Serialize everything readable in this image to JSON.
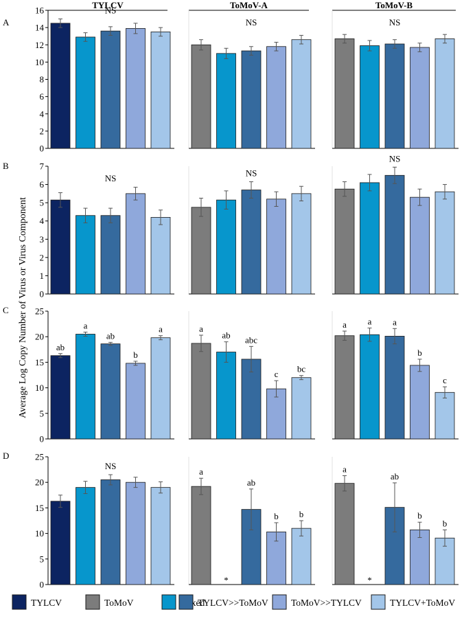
{
  "colors": {
    "TYLCV": "#0c2461",
    "ToMoV": "#7c7c7c",
    "Mixed": "#0796cc",
    "TYLCV>>ToMoV": "#356a9e",
    "ToMoV>>TYLCV": "#8fa8db",
    "TYLCV+ToMoV": "#a3c6e9"
  },
  "column_titles": [
    "TYLCV",
    "ToMoV-A",
    "ToMoV-B"
  ],
  "ylabel": "Average Log Copy Number of Virus or Virus Component",
  "legend": [
    {
      "label": "TYLCV",
      "key": "TYLCV"
    },
    {
      "label": "ToMoV",
      "key": "ToMoV"
    },
    {
      "label": "Mixed",
      "key": "Mixed"
    },
    {
      "label": "TYLCV>>ToMoV",
      "key": "TYLCV>>ToMoV"
    },
    {
      "label": "ToMoV>>TYLCV",
      "key": "ToMoV>>TYLCV"
    },
    {
      "label": "TYLCV+ToMoV",
      "key": "TYLCV+ToMoV"
    }
  ],
  "chart_data": [
    {
      "type": "bar",
      "row_label": "A",
      "yticks": [
        0,
        2,
        4,
        6,
        8,
        10,
        12,
        14,
        16
      ],
      "ylim": [
        0,
        16
      ],
      "panels": [
        {
          "title": "TYLCV",
          "note": "NS",
          "series": [
            "TYLCV",
            "Mixed",
            "TYLCV>>ToMoV",
            "ToMoV>>TYLCV",
            "TYLCV+ToMoV"
          ],
          "values": [
            14.5,
            12.9,
            13.6,
            13.9,
            13.5
          ],
          "errors": [
            0.5,
            0.5,
            0.5,
            0.6,
            0.5
          ],
          "letters": [
            "",
            "",
            "",
            "",
            ""
          ]
        },
        {
          "title": "ToMoV-A",
          "note": "NS",
          "series": [
            "ToMoV",
            "Mixed",
            "TYLCV>>ToMoV",
            "ToMoV>>TYLCV",
            "TYLCV+ToMoV"
          ],
          "values": [
            12.0,
            11.0,
            11.3,
            11.8,
            12.6
          ],
          "errors": [
            0.6,
            0.6,
            0.5,
            0.5,
            0.5
          ],
          "letters": [
            "",
            "",
            "",
            "",
            ""
          ]
        },
        {
          "title": "ToMoV-B",
          "note": "NS",
          "series": [
            "ToMoV",
            "Mixed",
            "TYLCV>>ToMoV",
            "ToMoV>>TYLCV",
            "TYLCV+ToMoV"
          ],
          "values": [
            12.7,
            11.9,
            12.1,
            11.7,
            12.7
          ],
          "errors": [
            0.5,
            0.6,
            0.5,
            0.5,
            0.5
          ],
          "letters": [
            "",
            "",
            "",
            "",
            ""
          ]
        }
      ]
    },
    {
      "type": "bar",
      "row_label": "B",
      "yticks": [
        0,
        1,
        2,
        3,
        4,
        5,
        6,
        7
      ],
      "ylim": [
        0,
        7
      ],
      "panels": [
        {
          "title": "TYLCV",
          "note": "NS",
          "series": [
            "TYLCV",
            "Mixed",
            "TYLCV>>ToMoV",
            "ToMoV>>TYLCV",
            "TYLCV+ToMoV"
          ],
          "values": [
            5.15,
            4.3,
            4.3,
            5.5,
            4.2
          ],
          "errors": [
            0.4,
            0.4,
            0.4,
            0.35,
            0.4
          ],
          "letters": [
            "",
            "",
            "",
            "",
            ""
          ]
        },
        {
          "title": "ToMoV-A",
          "note": "NS",
          "series": [
            "ToMoV",
            "Mixed",
            "TYLCV>>ToMoV",
            "ToMoV>>TYLCV",
            "TYLCV+ToMoV"
          ],
          "values": [
            4.75,
            5.15,
            5.7,
            5.2,
            5.5
          ],
          "errors": [
            0.5,
            0.5,
            0.45,
            0.4,
            0.4
          ],
          "letters": [
            "",
            "",
            "",
            "",
            ""
          ]
        },
        {
          "title": "ToMoV-B",
          "note": "NS",
          "series": [
            "ToMoV",
            "Mixed",
            "TYLCV>>ToMoV",
            "ToMoV>>TYLCV",
            "TYLCV+ToMoV"
          ],
          "values": [
            5.75,
            6.1,
            6.5,
            5.3,
            5.6
          ],
          "errors": [
            0.4,
            0.45,
            0.45,
            0.45,
            0.4
          ],
          "letters": [
            "",
            "",
            "",
            "",
            ""
          ]
        }
      ]
    },
    {
      "type": "bar",
      "row_label": "C",
      "yticks": [
        0,
        5,
        10,
        15,
        20,
        25
      ],
      "ylim": [
        0,
        25
      ],
      "panels": [
        {
          "title": "TYLCV",
          "note": "",
          "series": [
            "TYLCV",
            "Mixed",
            "TYLCV>>ToMoV",
            "ToMoV>>TYLCV",
            "TYLCV+ToMoV"
          ],
          "values": [
            16.3,
            20.5,
            18.6,
            14.8,
            19.8
          ],
          "errors": [
            0.4,
            0.4,
            0.3,
            0.4,
            0.4
          ],
          "letters": [
            "ab",
            "a",
            "ab",
            "b",
            "a"
          ]
        },
        {
          "title": "ToMoV-A",
          "note": "",
          "series": [
            "ToMoV",
            "Mixed",
            "TYLCV>>ToMoV",
            "ToMoV>>TYLCV",
            "TYLCV+ToMoV"
          ],
          "values": [
            18.7,
            17.0,
            15.6,
            9.8,
            12.0
          ],
          "errors": [
            1.6,
            2.0,
            2.5,
            1.6,
            0.4
          ],
          "letters": [
            "a",
            "ab",
            "abc",
            "c",
            "bc"
          ]
        },
        {
          "title": "ToMoV-B",
          "note": "",
          "series": [
            "ToMoV",
            "Mixed",
            "TYLCV>>ToMoV",
            "ToMoV>>TYLCV",
            "TYLCV+ToMoV"
          ],
          "values": [
            20.2,
            20.4,
            20.1,
            14.4,
            9.1
          ],
          "errors": [
            0.9,
            1.3,
            1.5,
            1.2,
            1.1
          ],
          "letters": [
            "a",
            "a",
            "a",
            "b",
            "c"
          ]
        }
      ]
    },
    {
      "type": "bar",
      "row_label": "D",
      "yticks": [
        0,
        5,
        10,
        15,
        20,
        25
      ],
      "ylim": [
        0,
        25
      ],
      "panels": [
        {
          "title": "TYLCV",
          "note": "NS",
          "series": [
            "TYLCV",
            "Mixed",
            "TYLCV>>ToMoV",
            "ToMoV>>TYLCV",
            "TYLCV+ToMoV"
          ],
          "values": [
            16.3,
            19.0,
            20.5,
            20.0,
            19.0
          ],
          "errors": [
            1.2,
            1.2,
            1.0,
            1.0,
            1.1
          ],
          "letters": [
            "",
            "",
            "",
            "",
            ""
          ]
        },
        {
          "title": "ToMoV-A",
          "note": "",
          "series": [
            "ToMoV",
            "Mixed",
            "TYLCV>>ToMoV",
            "ToMoV>>TYLCV",
            "TYLCV+ToMoV"
          ],
          "values": [
            19.2,
            0,
            14.7,
            10.3,
            11.0
          ],
          "errors": [
            1.6,
            0,
            4.0,
            1.8,
            1.5
          ],
          "letters": [
            "a",
            "*",
            "ab",
            "b",
            "b"
          ]
        },
        {
          "title": "ToMoV-B",
          "note": "",
          "series": [
            "ToMoV",
            "Mixed",
            "TYLCV>>ToMoV",
            "ToMoV>>TYLCV",
            "TYLCV+ToMoV"
          ],
          "values": [
            19.8,
            0,
            15.1,
            10.7,
            9.1
          ],
          "errors": [
            1.5,
            0,
            4.8,
            1.5,
            1.6
          ],
          "letters": [
            "a",
            "*",
            "ab",
            "b",
            "b"
          ]
        }
      ]
    }
  ]
}
